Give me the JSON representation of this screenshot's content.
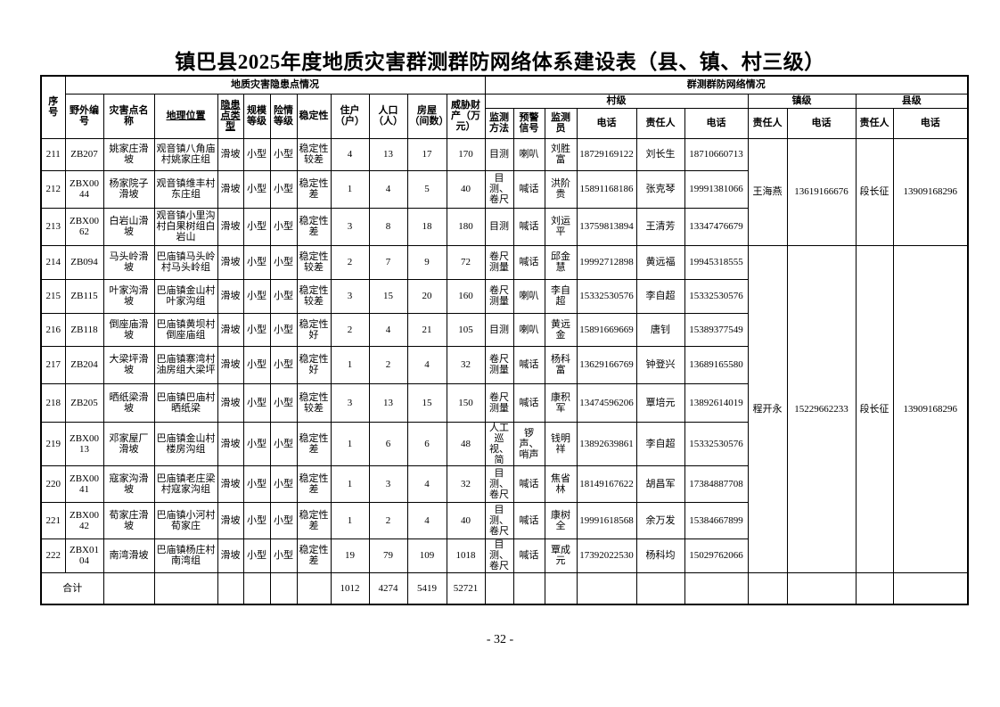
{
  "page": {
    "title": "镇巴县2025年度地质灾害群测群防网络体系建设表（县、镇、村三级）",
    "page_number": "- 32 -"
  },
  "table": {
    "header": {
      "col_seq": "序号",
      "group_left": "地质灾害隐患点情况",
      "group_right": "群测群防网络情况",
      "cols": [
        "野外编号",
        "灾害点名称",
        "地理位置",
        "隐患点类型",
        "规模等级",
        "险情等级",
        "稳定性",
        "住户（户）",
        "人口（人）",
        "房屋（间数）",
        "威胁财产（万元）"
      ],
      "village": "村级",
      "town": "镇级",
      "county": "县级",
      "village_cols": [
        "监测方法",
        "预警信号",
        "监测员",
        "电话",
        "责任人",
        "电话"
      ],
      "town_cols": [
        "责任人",
        "电话"
      ],
      "county_cols": [
        "责任人",
        "电话"
      ]
    },
    "rows": [
      {
        "seq": "211",
        "field_no": "ZB207",
        "name": "姚家庄滑坡",
        "location": "观音镇八角庙村姚家庄组",
        "type": "滑坡",
        "scale": "小型",
        "danger": "小型",
        "stability": "稳定性较差",
        "households": "4",
        "population": "13",
        "rooms": "17",
        "property": "170",
        "method": "目测",
        "signal": "喇叭",
        "monitor": "刘胜富",
        "monitor_phone": "18729169122",
        "responsible": "刘长生",
        "responsible_phone": "18710660713"
      },
      {
        "seq": "212",
        "field_no": "ZBX0044",
        "name": "杨家院子滑坡",
        "location": "观音镇维丰村东庄组",
        "type": "滑坡",
        "scale": "小型",
        "danger": "小型",
        "stability": "稳定性差",
        "households": "1",
        "population": "4",
        "rooms": "5",
        "property": "40",
        "method": "目测、卷尺",
        "signal": "喊话",
        "monitor": "洪阶贵",
        "monitor_phone": "15891168186",
        "responsible": "张克琴",
        "responsible_phone": "19991381066"
      },
      {
        "seq": "213",
        "field_no": "ZBX0062",
        "name": "白岩山滑坡",
        "location": "观音镇小里沟村白果树组白岩山",
        "type": "滑坡",
        "scale": "小型",
        "danger": "小型",
        "stability": "稳定性差",
        "households": "3",
        "population": "8",
        "rooms": "18",
        "property": "180",
        "method": "目测",
        "signal": "喊话",
        "monitor": "刘运平",
        "monitor_phone": "13759813894",
        "responsible": "王清芳",
        "responsible_phone": "13347476679"
      },
      {
        "seq": "214",
        "field_no": "ZB094",
        "name": "马头岭滑坡",
        "location": "巴庙镇马头岭村马头岭组",
        "type": "滑坡",
        "scale": "小型",
        "danger": "小型",
        "stability": "稳定性较差",
        "households": "2",
        "population": "7",
        "rooms": "9",
        "property": "72",
        "method": "卷尺测量",
        "signal": "喊话",
        "monitor": "邱金慧",
        "monitor_phone": "19992712898",
        "responsible": "黄远福",
        "responsible_phone": "19945318555"
      },
      {
        "seq": "215",
        "field_no": "ZB115",
        "name": "叶家沟滑坡",
        "location": "巴庙镇金山村叶家沟组",
        "type": "滑坡",
        "scale": "小型",
        "danger": "小型",
        "stability": "稳定性较差",
        "households": "3",
        "population": "15",
        "rooms": "20",
        "property": "160",
        "method": "卷尺测量",
        "signal": "喇叭",
        "monitor": "李自超",
        "monitor_phone": "15332530576",
        "responsible": "李自超",
        "responsible_phone": "15332530576"
      },
      {
        "seq": "216",
        "field_no": "ZB118",
        "name": "倒座庙滑坡",
        "location": "巴庙镇黄坝村倒座庙组",
        "type": "滑坡",
        "scale": "小型",
        "danger": "小型",
        "stability": "稳定性好",
        "households": "2",
        "population": "4",
        "rooms": "21",
        "property": "105",
        "method": "目测",
        "signal": "喇叭",
        "monitor": "黄远金",
        "monitor_phone": "15891669669",
        "responsible": "唐钊",
        "responsible_phone": "15389377549"
      },
      {
        "seq": "217",
        "field_no": "ZB204",
        "name": "大梁坪滑坡",
        "location": "巴庙镇寨湾村油房组大梁坪",
        "type": "滑坡",
        "scale": "小型",
        "danger": "小型",
        "stability": "稳定性好",
        "households": "1",
        "population": "2",
        "rooms": "4",
        "property": "32",
        "method": "卷尺测量",
        "signal": "喊话",
        "monitor": "杨科富",
        "monitor_phone": "13629166769",
        "responsible": "钟登兴",
        "responsible_phone": "13689165580"
      },
      {
        "seq": "218",
        "field_no": "ZB205",
        "name": "晒纸梁滑坡",
        "location": "巴庙镇巴庙村晒纸梁",
        "type": "滑坡",
        "scale": "小型",
        "danger": "小型",
        "stability": "稳定性较差",
        "households": "3",
        "population": "13",
        "rooms": "15",
        "property": "150",
        "method": "卷尺测量",
        "signal": "喊话",
        "monitor": "康积军",
        "monitor_phone": "13474596206",
        "responsible": "覃培元",
        "responsible_phone": "13892614019"
      },
      {
        "seq": "219",
        "field_no": "ZBX0013",
        "name": "邓家屋厂滑坡",
        "location": "巴庙镇金山村楼房沟组",
        "type": "滑坡",
        "scale": "小型",
        "danger": "小型",
        "stability": "稳定性差",
        "households": "1",
        "population": "6",
        "rooms": "6",
        "property": "48",
        "method": "人工巡视、简",
        "signal": "锣声、哨声",
        "monitor": "钱明祥",
        "monitor_phone": "13892639861",
        "responsible": "李自超",
        "responsible_phone": "15332530576"
      },
      {
        "seq": "220",
        "field_no": "ZBX0041",
        "name": "寇家沟滑坡",
        "location": "巴庙镇老庄梁村寇家沟组",
        "type": "滑坡",
        "scale": "小型",
        "danger": "小型",
        "stability": "稳定性差",
        "households": "1",
        "population": "3",
        "rooms": "4",
        "property": "32",
        "method": "目测、卷尺",
        "signal": "喊话",
        "monitor": "焦省林",
        "monitor_phone": "18149167622",
        "responsible": "胡昌军",
        "responsible_phone": "17384887708"
      },
      {
        "seq": "221",
        "field_no": "ZBX0042",
        "name": "荀家庄滑坡",
        "location": "巴庙镇小河村荀家庄",
        "type": "滑坡",
        "scale": "小型",
        "danger": "小型",
        "stability": "稳定性差",
        "households": "1",
        "population": "2",
        "rooms": "4",
        "property": "40",
        "method": "目测、卷尺",
        "signal": "喊话",
        "monitor": "康树全",
        "monitor_phone": "19991618568",
        "responsible": "余万发",
        "responsible_phone": "15384667899"
      },
      {
        "seq": "222",
        "field_no": "ZBX0104",
        "name": "南湾滑坡",
        "location": "巴庙镇杨庄村南湾组",
        "type": "滑坡",
        "scale": "小型",
        "danger": "小型",
        "stability": "稳定性差",
        "households": "19",
        "population": "79",
        "rooms": "109",
        "property": "1018",
        "method": "目测、卷尺",
        "signal": "喊话",
        "monitor": "覃成元",
        "monitor_phone": "17392022530",
        "responsible": "杨科均",
        "responsible_phone": "15029762066"
      }
    ],
    "town_spans": [
      {
        "start": 0,
        "span": 3,
        "name": "王海燕",
        "phone": "13619166676"
      },
      {
        "start": 3,
        "span": 9,
        "name": "程开永",
        "phone": "15229662233"
      }
    ],
    "county_spans": [
      {
        "start": 0,
        "span": 3,
        "name": "段长征",
        "phone": "13909168296"
      },
      {
        "start": 3,
        "span": 9,
        "name": "段长征",
        "phone": "13909168296"
      }
    ],
    "total": {
      "label": "合计",
      "households": "1012",
      "population": "4274",
      "rooms": "5419",
      "property": "52721"
    }
  }
}
